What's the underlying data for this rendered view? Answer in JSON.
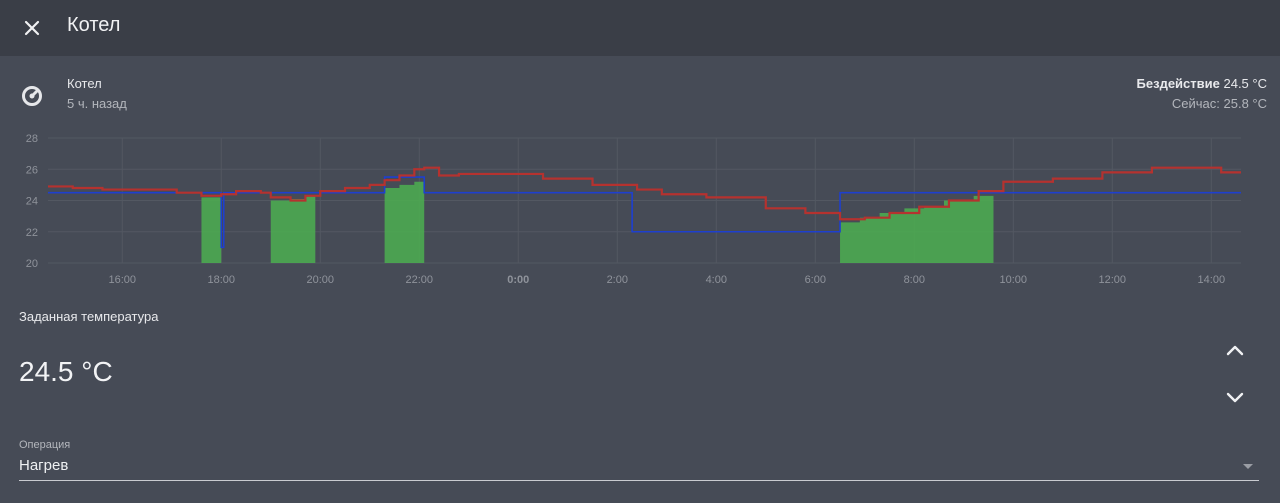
{
  "header": {
    "title": "Котел",
    "close_icon": "close-icon"
  },
  "entity": {
    "icon": "thermostat-dial-icon",
    "name": "Котел",
    "last_changed": "5 ч. назад",
    "state_label": "Бездействие",
    "state_value": "24.5 °C",
    "current": "Сейчас: 25.8 °C"
  },
  "chart_data": {
    "type": "line",
    "x_unit": "hours since 15:00",
    "xlim": [
      -0.5,
      23.6
    ],
    "ylim": [
      20,
      28
    ],
    "yticks": [
      20,
      22,
      24,
      26,
      28
    ],
    "xticks": [
      {
        "x": 1,
        "label": "16:00",
        "bold": false
      },
      {
        "x": 3,
        "label": "18:00",
        "bold": false
      },
      {
        "x": 5,
        "label": "20:00",
        "bold": false
      },
      {
        "x": 7,
        "label": "22:00",
        "bold": false
      },
      {
        "x": 9,
        "label": "0:00",
        "bold": true
      },
      {
        "x": 11,
        "label": "2:00",
        "bold": false
      },
      {
        "x": 13,
        "label": "4:00",
        "bold": false
      },
      {
        "x": 15,
        "label": "6:00",
        "bold": false
      },
      {
        "x": 17,
        "label": "8:00",
        "bold": false
      },
      {
        "x": 19,
        "label": "10:00",
        "bold": false
      },
      {
        "x": 21,
        "label": "12:00",
        "bold": false
      },
      {
        "x": 23,
        "label": "14:00",
        "bold": false
      }
    ],
    "grid": true,
    "colors": {
      "current": "#b5322f",
      "target": "#1e3fcf",
      "heating": "#4caf50"
    },
    "current_temperature": [
      [
        -0.5,
        24.9
      ],
      [
        0.0,
        24.8
      ],
      [
        0.6,
        24.7
      ],
      [
        1.6,
        24.7
      ],
      [
        2.1,
        24.5
      ],
      [
        2.6,
        24.3
      ],
      [
        3.0,
        24.4
      ],
      [
        3.3,
        24.6
      ],
      [
        3.8,
        24.5
      ],
      [
        4.0,
        24.2
      ],
      [
        4.4,
        24.0
      ],
      [
        4.7,
        24.3
      ],
      [
        5.0,
        24.6
      ],
      [
        5.5,
        24.8
      ],
      [
        6.0,
        25.0
      ],
      [
        6.3,
        25.3
      ],
      [
        6.6,
        25.6
      ],
      [
        6.9,
        26.0
      ],
      [
        7.1,
        26.1
      ],
      [
        7.4,
        25.6
      ],
      [
        7.8,
        25.7
      ],
      [
        8.5,
        25.7
      ],
      [
        9.5,
        25.4
      ],
      [
        10.5,
        25.0
      ],
      [
        11.4,
        24.7
      ],
      [
        11.9,
        24.4
      ],
      [
        12.8,
        24.2
      ],
      [
        14.0,
        23.5
      ],
      [
        14.8,
        23.2
      ],
      [
        15.5,
        22.8
      ],
      [
        16.0,
        22.9
      ],
      [
        16.5,
        23.2
      ],
      [
        17.1,
        23.6
      ],
      [
        17.7,
        24.0
      ],
      [
        18.3,
        24.6
      ],
      [
        18.8,
        25.2
      ],
      [
        19.8,
        25.4
      ],
      [
        20.8,
        25.8
      ],
      [
        21.8,
        26.1
      ],
      [
        22.8,
        26.1
      ],
      [
        23.2,
        25.8
      ],
      [
        23.6,
        25.8
      ]
    ],
    "target_temperature": [
      [
        -0.5,
        24.5
      ],
      [
        2.6,
        24.5
      ],
      [
        3.0,
        24.5
      ],
      [
        3.0,
        21.0
      ],
      [
        3.05,
        21.0
      ],
      [
        3.05,
        24.5
      ],
      [
        6.3,
        24.5
      ],
      [
        6.3,
        25.5
      ],
      [
        7.1,
        25.5
      ],
      [
        7.1,
        24.5
      ],
      [
        11.3,
        24.5
      ],
      [
        11.3,
        22.0
      ],
      [
        15.5,
        22.0
      ],
      [
        15.5,
        24.5
      ],
      [
        23.6,
        24.5
      ]
    ],
    "heating_periods": [
      [
        [
          2.6,
          24.2
        ],
        [
          3.0,
          24.4
        ]
      ],
      [
        [
          4.0,
          24.0
        ],
        [
          4.4,
          24.1
        ],
        [
          4.7,
          24.3
        ],
        [
          4.9,
          24.5
        ]
      ],
      [
        [
          6.3,
          24.8
        ],
        [
          6.6,
          25.0
        ],
        [
          6.9,
          25.2
        ],
        [
          7.1,
          25.4
        ]
      ],
      [
        [
          15.5,
          22.6
        ],
        [
          15.9,
          22.9
        ],
        [
          16.3,
          23.2
        ],
        [
          16.8,
          23.5
        ],
        [
          17.2,
          23.6
        ],
        [
          17.6,
          24.0
        ],
        [
          18.2,
          24.3
        ],
        [
          18.6,
          24.5
        ]
      ]
    ]
  },
  "target": {
    "label": "Заданная температура",
    "value": "24.5 °C",
    "up_icon": "chevron-up-icon",
    "down_icon": "chevron-down-icon"
  },
  "operation": {
    "label": "Операция",
    "value": "Нагрев",
    "caret_icon": "dropdown-arrow-icon"
  }
}
